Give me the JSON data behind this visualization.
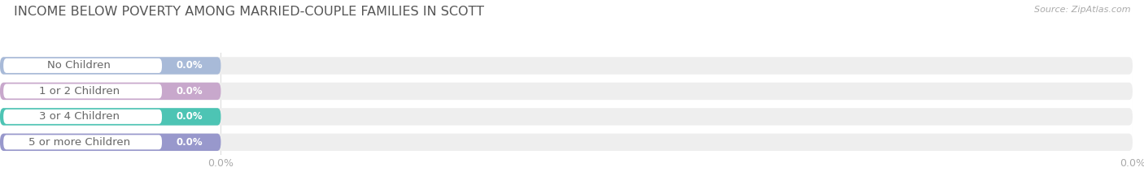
{
  "title": "INCOME BELOW POVERTY AMONG MARRIED-COUPLE FAMILIES IN SCOTT",
  "source": "Source: ZipAtlas.com",
  "categories": [
    "No Children",
    "1 or 2 Children",
    "3 or 4 Children",
    "5 or more Children"
  ],
  "values": [
    0.0,
    0.0,
    0.0,
    0.0
  ],
  "bar_colors": [
    "#a8bad8",
    "#c8a8cc",
    "#4dc4b4",
    "#9898cc"
  ],
  "bar_bg_color": "#eeeeee",
  "label_text_color": "#666666",
  "value_label_color": "#ffffff",
  "tick_label_color": "#aaaaaa",
  "title_color": "#555555",
  "source_color": "#aaaaaa",
  "background_color": "#ffffff",
  "grid_color": "#dddddd",
  "white_pill_color": "#ffffff",
  "title_fontsize": 11.5,
  "label_fontsize": 9.5,
  "value_fontsize": 8.5,
  "tick_fontsize": 9,
  "source_fontsize": 8
}
